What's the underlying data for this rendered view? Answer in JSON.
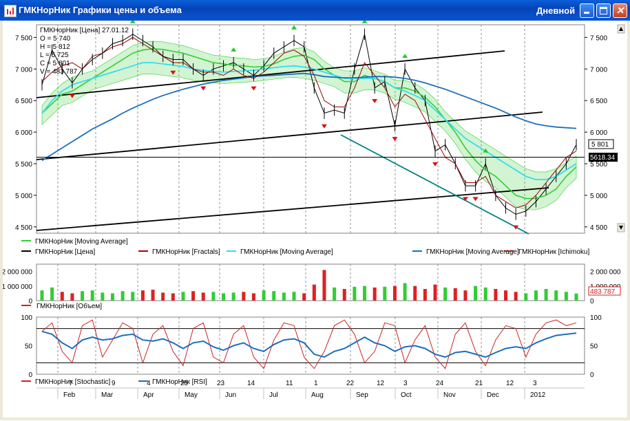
{
  "window": {
    "title": "ГМКНорНик Графики цены и объема",
    "period": "Дневной",
    "buttons": {
      "minimize": "minimize-icon",
      "maximize": "maximize-icon",
      "close": "close-icon",
      "close_glyph": "✕"
    }
  },
  "colors": {
    "price": "#000000",
    "ma_fast": "#33cc33",
    "ma_mid": "#33ddee",
    "ma_slow": "#1a6ebd",
    "ichimoku": "#990000",
    "cloud": "#33cc33",
    "fractal_up": "#22cc22",
    "fractal_down": "#dd1111",
    "stochastic": "#cc2222",
    "rsi": "#1a6ebd",
    "volume_up": "#33cc33",
    "volume_down": "#dd2222",
    "channel": "#000000",
    "downtrend": "#00807f"
  },
  "panes": {
    "price_overlay": {
      "title": "ГМКНорНик [Цена] 27.01.12",
      "o": "O = 5 740",
      "h": "H = 5 812",
      "l": "L = 5 725",
      "c": "C = 5 801",
      "v": "V = 483 787"
    },
    "volume_last_label": "483 787",
    "price_labels": {
      "last_close": "5 801",
      "crosshair": "5618.34"
    }
  },
  "chart_data": [
    {
      "type": "line",
      "pane": "price",
      "y_ticks": [
        4500,
        5000,
        5500,
        6000,
        6500,
        7000,
        7500
      ],
      "y_tick_labels": [
        "4 500",
        "5 000",
        "5 500",
        "6 000",
        "6 500",
        "7 000",
        "7 500"
      ],
      "ylim": [
        4400,
        7700
      ],
      "x": [
        "2011-01-24",
        "2011-01-31",
        "2011-02-07",
        "2011-02-14",
        "2011-02-21",
        "2011-02-28",
        "2011-03-07",
        "2011-03-14",
        "2011-03-21",
        "2011-03-28",
        "2011-04-04",
        "2011-04-11",
        "2011-04-18",
        "2011-04-25",
        "2011-05-02",
        "2011-05-09",
        "2011-05-16",
        "2011-05-23",
        "2011-05-30",
        "2011-06-06",
        "2011-06-13",
        "2011-06-20",
        "2011-06-27",
        "2011-07-04",
        "2011-07-11",
        "2011-07-18",
        "2011-07-25",
        "2011-08-01",
        "2011-08-08",
        "2011-08-15",
        "2011-08-22",
        "2011-08-29",
        "2011-09-05",
        "2011-09-12",
        "2011-09-19",
        "2011-09-26",
        "2011-10-03",
        "2011-10-10",
        "2011-10-17",
        "2011-10-24",
        "2011-10-31",
        "2011-11-07",
        "2011-11-14",
        "2011-11-21",
        "2011-11-28",
        "2011-12-05",
        "2011-12-12",
        "2011-12-19",
        "2011-12-26",
        "2012-01-02",
        "2012-01-09",
        "2012-01-16",
        "2012-01-23",
        "2012-01-27"
      ],
      "series": [
        {
          "name": "ГМКНорНик [Цена]",
          "values": [
            6750,
            7300,
            7000,
            6780,
            7000,
            7150,
            7250,
            7400,
            7450,
            7550,
            7450,
            7350,
            7200,
            7150,
            7150,
            7000,
            6900,
            7000,
            7050,
            7100,
            7000,
            6900,
            7050,
            7250,
            7350,
            7450,
            7350,
            6700,
            6300,
            6350,
            6300,
            7000,
            7550,
            6700,
            6800,
            6100,
            7000,
            6700,
            6500,
            5700,
            5800,
            5500,
            5150,
            5150,
            5500,
            5000,
            4800,
            4700,
            4750,
            4900,
            5100,
            5300,
            5500,
            5801
          ]
        },
        {
          "name": "ГМКНорНик [Moving Average]",
          "values": [
            6300,
            6450,
            6600,
            6650,
            6750,
            6850,
            6950,
            7050,
            7150,
            7250,
            7300,
            7320,
            7310,
            7280,
            7250,
            7200,
            7150,
            7100,
            7080,
            7060,
            7050,
            7030,
            7040,
            7080,
            7150,
            7200,
            7220,
            7150,
            7000,
            6900,
            6800,
            6800,
            6900,
            6850,
            6800,
            6700,
            6700,
            6650,
            6550,
            6400,
            6200,
            6000,
            5750,
            5550,
            5400,
            5300,
            5150,
            5000,
            4950,
            4950,
            5000,
            5100,
            5300,
            5450
          ]
        },
        {
          "name": "ГМКНорНик [Moving Average]",
          "values": [
            6300,
            6500,
            6650,
            6750,
            6800,
            6850,
            6900,
            6950,
            7000,
            7050,
            7100,
            7100,
            7080,
            7060,
            7040,
            7000,
            6980,
            6960,
            6950,
            6960,
            6970,
            6980,
            7000,
            7020,
            7040,
            7050,
            7030,
            7000,
            6950,
            6900,
            6850,
            6850,
            6850,
            6850,
            6800,
            6700,
            6650,
            6580,
            6500,
            6350,
            6200,
            6050,
            5900,
            5800,
            5700,
            5600,
            5500,
            5400,
            5300,
            5250,
            5250,
            5300,
            5400,
            5500
          ]
        },
        {
          "name": "ГМКНорНик [Moving Average]",
          "values": [
            5550,
            5650,
            5750,
            5850,
            5950,
            6050,
            6130,
            6210,
            6300,
            6380,
            6450,
            6520,
            6580,
            6630,
            6680,
            6720,
            6760,
            6790,
            6820,
            6840,
            6860,
            6880,
            6890,
            6900,
            6910,
            6920,
            6930,
            6910,
            6880,
            6870,
            6860,
            6860,
            6870,
            6880,
            6880,
            6870,
            6850,
            6820,
            6780,
            6730,
            6680,
            6620,
            6560,
            6500,
            6440,
            6380,
            6310,
            6240,
            6180,
            6130,
            6100,
            6080,
            6070,
            6060
          ]
        },
        {
          "name": "ГМКНорНик [Ichimoku]",
          "values": [
            6800,
            6950,
            7050,
            7100,
            7000,
            7200,
            7250,
            7350,
            7400,
            7500,
            7400,
            7300,
            7200,
            7100,
            7100,
            7000,
            6950,
            6950,
            6900,
            7000,
            6900,
            6850,
            6950,
            7100,
            7250,
            7300,
            7200,
            6900,
            6500,
            6400,
            6400,
            6700,
            7100,
            6900,
            6700,
            6400,
            6600,
            6500,
            6200,
            5900,
            5600,
            5500,
            5200,
            5200,
            5300,
            5000,
            4900,
            4800,
            4850,
            5000,
            5200,
            5400,
            5600,
            5700
          ]
        }
      ]
    },
    {
      "type": "bar",
      "pane": "volume",
      "y_ticks": [
        0,
        1000000,
        2000000
      ],
      "y_tick_labels_left": [
        "0",
        "1 000 000",
        "2 000 000"
      ],
      "y_tick_labels_right": [
        "0",
        "1 000 000",
        "2 000 000"
      ],
      "ylim": [
        0,
        2500000
      ],
      "values": [
        700000,
        900000,
        600000,
        500000,
        650000,
        700000,
        550000,
        500000,
        650000,
        600000,
        700000,
        750000,
        550000,
        500000,
        600000,
        650000,
        550000,
        600000,
        500000,
        550000,
        600000,
        500000,
        700000,
        650000,
        550000,
        600000,
        500000,
        1100000,
        2100000,
        900000,
        800000,
        950000,
        1000000,
        900000,
        950000,
        1000000,
        1200000,
        1000000,
        800000,
        1100000,
        900000,
        850000,
        700000,
        1000000,
        900000,
        800000,
        700000,
        600000,
        500000,
        700000,
        800000,
        700000,
        600000,
        483787
      ]
    },
    {
      "type": "line",
      "pane": "oscillators",
      "y_ticks": [
        0,
        50,
        100
      ],
      "y_tick_labels": [
        "0",
        "50",
        "100"
      ],
      "levels": [
        20,
        80
      ],
      "ylim": [
        0,
        100
      ],
      "series": [
        {
          "name": "ГМКНорНик [Stochastic]",
          "values": [
            75,
            90,
            40,
            20,
            85,
            95,
            30,
            60,
            90,
            80,
            20,
            70,
            85,
            40,
            15,
            80,
            90,
            30,
            20,
            70,
            85,
            30,
            10,
            60,
            90,
            85,
            30,
            10,
            40,
            85,
            95,
            70,
            20,
            40,
            90,
            85,
            20,
            60,
            85,
            30,
            10,
            70,
            90,
            40,
            15,
            60,
            85,
            80,
            30,
            70,
            90,
            95,
            85,
            90
          ]
        },
        {
          "name": "ГМКНорНик [RSI]",
          "values": [
            75,
            70,
            55,
            45,
            60,
            65,
            60,
            62,
            68,
            70,
            60,
            58,
            62,
            55,
            45,
            55,
            58,
            48,
            42,
            50,
            55,
            45,
            40,
            52,
            60,
            62,
            55,
            35,
            30,
            40,
            45,
            55,
            65,
            55,
            50,
            40,
            48,
            50,
            45,
            35,
            30,
            38,
            40,
            35,
            30,
            38,
            45,
            48,
            45,
            55,
            62,
            68,
            70,
            72
          ]
        }
      ]
    }
  ],
  "x_axis": {
    "days": [
      {
        "label": "7",
        "x": 96
      },
      {
        "label": "9",
        "x": 158
      },
      {
        "label": "4",
        "x": 209
      },
      {
        "label": "25",
        "x": 258
      },
      {
        "label": "23",
        "x": 311
      },
      {
        "label": "14",
        "x": 355
      },
      {
        "label": "11",
        "x": 411
      },
      {
        "label": "1",
        "x": 452
      },
      {
        "label": "22",
        "x": 499
      },
      {
        "label": "12",
        "x": 543
      },
      {
        "label": "3",
        "x": 582
      },
      {
        "label": "24",
        "x": 629
      },
      {
        "label": "21",
        "x": 686
      },
      {
        "label": "12",
        "x": 731
      },
      {
        "label": "3",
        "x": 770
      }
    ],
    "months": [
      {
        "label": "Feb",
        "x": 88
      },
      {
        "label": "Mar",
        "x": 143
      },
      {
        "label": "Apr",
        "x": 204
      },
      {
        "label": "May",
        "x": 264
      },
      {
        "label": "Jun",
        "x": 323
      },
      {
        "label": "Jul",
        "x": 387
      },
      {
        "label": "Aug",
        "x": 448
      },
      {
        "label": "Sep",
        "x": 513
      },
      {
        "label": "Oct",
        "x": 578
      },
      {
        "label": "Nov",
        "x": 640
      },
      {
        "label": "Dec",
        "x": 703
      },
      {
        "label": "2012",
        "x": 766
      }
    ]
  },
  "legend": {
    "price": [
      {
        "label": "ГМКНорНик [Moving Average]",
        "color": "#33cc33"
      },
      {
        "label": "ГМКНорНик [Цена]",
        "color": "#000000"
      },
      {
        "label": "ГМКНорНик [Fractals]",
        "color": "#aa0000"
      },
      {
        "label": "ГМКНорНик [Moving Average]",
        "color": "#33ddee"
      },
      {
        "label": "ГМКНорНик [Moving Average]",
        "color": "#1a6ebd"
      },
      {
        "label": "ГМКНорНик [Ichimoku]",
        "color": "#aa2222"
      }
    ],
    "volume": [
      {
        "label": "ГМКНорНик [Объем]",
        "color": "#cc2222"
      }
    ],
    "oscillators": [
      {
        "label": "ГМКНорНик [Stochastic]",
        "color": "#cc2222"
      },
      {
        "label": "ГМКНорНик [RSI]",
        "color": "#1a6ebd"
      }
    ]
  }
}
